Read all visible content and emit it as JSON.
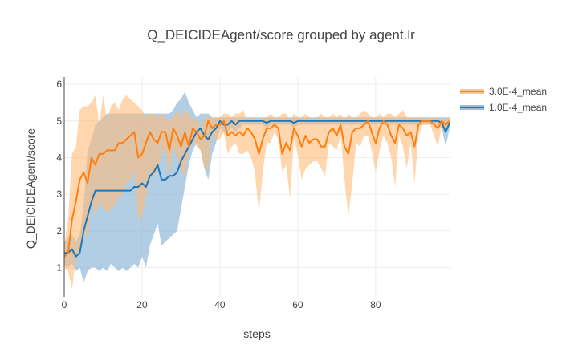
{
  "chart_data": {
    "type": "line",
    "title": "Q_DEICIDEAgent/score grouped by agent.lr",
    "xlabel": "steps",
    "ylabel": "Q_DEICIDEAgent/score",
    "xlim": [
      0,
      99
    ],
    "ylim": [
      0.2,
      6.2
    ],
    "x_ticks": [
      0,
      20,
      40,
      60,
      80
    ],
    "y_ticks": [
      1,
      2,
      3,
      4,
      5,
      6
    ],
    "grid": true,
    "legend_position": "top-right",
    "series": [
      {
        "name": "3.0E-4_mean",
        "color": "#ff7f0e",
        "band_color": "#ffbb78",
        "points": [
          [
            0,
            1.3
          ],
          [
            1,
            1.4
          ],
          [
            2,
            2.3
          ],
          [
            3,
            2.8
          ],
          [
            4,
            3.4
          ],
          [
            5,
            3.6
          ],
          [
            6,
            3.3
          ],
          [
            7,
            4.0
          ],
          [
            8,
            3.8
          ],
          [
            9,
            4.1
          ],
          [
            10,
            4.1
          ],
          [
            11,
            4.2
          ],
          [
            12,
            4.2
          ],
          [
            13,
            4.2
          ],
          [
            14,
            4.4
          ],
          [
            15,
            4.4
          ],
          [
            16,
            4.5
          ],
          [
            17,
            4.6
          ],
          [
            18,
            4.7
          ],
          [
            19,
            4.0
          ],
          [
            20,
            4.1
          ],
          [
            21,
            4.4
          ],
          [
            22,
            4.7
          ],
          [
            23,
            4.5
          ],
          [
            24,
            4.4
          ],
          [
            25,
            4.7
          ],
          [
            26,
            4.7
          ],
          [
            27,
            4.2
          ],
          [
            28,
            4.8
          ],
          [
            29,
            4.6
          ],
          [
            30,
            4.3
          ],
          [
            31,
            4.7
          ],
          [
            32,
            4.3
          ],
          [
            33,
            4.8
          ],
          [
            34,
            4.7
          ],
          [
            35,
            4.5
          ],
          [
            36,
            4.6
          ],
          [
            37,
            5.0
          ],
          [
            38,
            4.8
          ],
          [
            39,
            4.9
          ],
          [
            40,
            4.9
          ],
          [
            41,
            5.0
          ],
          [
            42,
            4.6
          ],
          [
            43,
            4.7
          ],
          [
            44,
            4.6
          ],
          [
            45,
            4.7
          ],
          [
            46,
            4.6
          ],
          [
            47,
            4.8
          ],
          [
            48,
            4.7
          ],
          [
            49,
            4.5
          ],
          [
            50,
            4.1
          ],
          [
            51,
            4.5
          ],
          [
            52,
            4.8
          ],
          [
            53,
            4.8
          ],
          [
            54,
            4.9
          ],
          [
            55,
            4.8
          ],
          [
            56,
            4.1
          ],
          [
            57,
            4.4
          ],
          [
            58,
            4.2
          ],
          [
            59,
            4.8
          ],
          [
            60,
            4.6
          ],
          [
            61,
            4.3
          ],
          [
            62,
            4.6
          ],
          [
            63,
            4.4
          ],
          [
            64,
            4.5
          ],
          [
            65,
            4.5
          ],
          [
            66,
            4.3
          ],
          [
            67,
            4.3
          ],
          [
            68,
            4.7
          ],
          [
            69,
            4.8
          ],
          [
            70,
            4.6
          ],
          [
            71,
            4.9
          ],
          [
            72,
            4.3
          ],
          [
            73,
            4.1
          ],
          [
            74,
            4.7
          ],
          [
            75,
            4.8
          ],
          [
            76,
            4.8
          ],
          [
            77,
            4.9
          ],
          [
            78,
            5.0
          ],
          [
            79,
            4.7
          ],
          [
            80,
            4.4
          ],
          [
            81,
            4.8
          ],
          [
            82,
            5.0
          ],
          [
            83,
            4.9
          ],
          [
            84,
            4.6
          ],
          [
            85,
            4.4
          ],
          [
            86,
            4.9
          ],
          [
            87,
            4.8
          ],
          [
            88,
            4.6
          ],
          [
            89,
            4.7
          ],
          [
            90,
            4.3
          ],
          [
            91,
            4.9
          ],
          [
            92,
            5.0
          ],
          [
            93,
            5.0
          ],
          [
            94,
            5.0
          ],
          [
            95,
            4.9
          ],
          [
            96,
            4.8
          ],
          [
            97,
            5.0
          ],
          [
            98,
            4.9
          ],
          [
            99,
            5.0
          ]
        ],
        "upper": [
          1.6,
          2.3,
          4.1,
          4.3,
          5.3,
          5.4,
          5.4,
          5.5,
          5.7,
          4.9,
          5.7,
          5.0,
          5.4,
          5.5,
          5.3,
          5.6,
          5.7,
          5.6,
          5.5,
          5.4,
          5.3,
          5.1,
          5.2,
          5.2,
          5.1,
          5.2,
          5.1,
          5.0,
          5.1,
          5.3,
          5.1,
          5.3,
          5.2,
          5.0,
          5.1,
          4.8,
          5.1,
          5.1,
          5.1,
          5.1,
          5.1,
          5.2,
          5.2,
          5.1,
          5.2,
          5.2,
          5.3,
          5.0,
          5.1,
          5.1,
          5.0,
          5.1,
          5.1,
          5.2,
          5.1,
          5.1,
          5.2,
          5.2,
          5.0,
          5.2,
          5.1,
          5.1,
          5.2,
          5.1,
          5.0,
          5.1,
          5.2,
          5.1,
          5.1,
          5.2,
          5.1,
          5.2,
          5.0,
          5.2,
          5.1,
          5.1,
          5.2,
          5.3,
          5.2,
          5.1,
          5.1,
          5.2,
          5.1,
          5.2,
          5.2,
          5.1,
          5.2,
          5.3,
          5.1,
          5.1,
          5.1,
          5.1,
          5.1,
          5.0,
          5.1,
          5.1,
          5.1,
          5.0,
          5.1,
          5.1
        ],
        "lower": [
          1.0,
          0.9,
          0.4,
          1.3,
          1.5,
          2.0,
          1.8,
          2.8,
          2.4,
          2.8,
          2.6,
          2.5,
          2.6,
          2.7,
          2.9,
          3.0,
          3.3,
          3.4,
          3.6,
          2.3,
          2.4,
          2.9,
          3.6,
          3.5,
          3.6,
          4.1,
          4.2,
          3.4,
          4.3,
          4.0,
          3.6,
          3.5,
          4.2,
          4.5,
          4.3,
          4.2,
          3.7,
          3.7,
          4.6,
          4.5,
          4.5,
          4.7,
          4.1,
          4.3,
          4.4,
          4.1,
          4.1,
          4.2,
          4.0,
          3.6,
          2.5,
          3.6,
          4.4,
          4.4,
          4.7,
          4.5,
          3.6,
          3.8,
          2.9,
          4.5,
          4.1,
          3.4,
          3.7,
          3.8,
          3.9,
          3.9,
          3.7,
          3.5,
          4.4,
          4.3,
          4.2,
          4.6,
          3.4,
          2.4,
          3.3,
          4.4,
          4.3,
          4.6,
          4.6,
          4.2,
          3.6,
          4.2,
          4.6,
          4.4,
          4.0,
          3.2,
          4.6,
          4.3,
          3.7,
          4.4,
          3.3,
          4.6,
          4.9,
          4.9,
          4.9,
          4.6,
          4.3,
          4.9,
          4.7,
          4.9
        ]
      },
      {
        "name": "1.0E-4_mean",
        "color": "#1f77b4",
        "band_color": "#7fadd4",
        "points": [
          [
            0,
            1.4
          ],
          [
            1,
            1.4
          ],
          [
            2,
            1.5
          ],
          [
            3,
            1.3
          ],
          [
            4,
            1.4
          ],
          [
            5,
            2.0
          ],
          [
            6,
            2.4
          ],
          [
            7,
            2.8
          ],
          [
            8,
            3.1
          ],
          [
            9,
            3.1
          ],
          [
            10,
            3.1
          ],
          [
            11,
            3.1
          ],
          [
            12,
            3.1
          ],
          [
            13,
            3.1
          ],
          [
            14,
            3.1
          ],
          [
            15,
            3.1
          ],
          [
            16,
            3.1
          ],
          [
            17,
            3.1
          ],
          [
            18,
            3.2
          ],
          [
            19,
            3.2
          ],
          [
            20,
            3.3
          ],
          [
            21,
            3.2
          ],
          [
            22,
            3.5
          ],
          [
            23,
            3.6
          ],
          [
            24,
            3.8
          ],
          [
            25,
            3.4
          ],
          [
            26,
            3.4
          ],
          [
            27,
            3.5
          ],
          [
            28,
            3.5
          ],
          [
            29,
            3.6
          ],
          [
            30,
            3.9
          ],
          [
            31,
            4.1
          ],
          [
            32,
            4.3
          ],
          [
            33,
            4.5
          ],
          [
            34,
            4.7
          ],
          [
            35,
            4.8
          ],
          [
            36,
            4.6
          ],
          [
            37,
            4.5
          ],
          [
            38,
            4.7
          ],
          [
            39,
            4.8
          ],
          [
            40,
            5.0
          ],
          [
            41,
            4.9
          ],
          [
            42,
            4.9
          ],
          [
            43,
            5.0
          ],
          [
            44,
            4.9
          ],
          [
            45,
            5.0
          ],
          [
            46,
            5.0
          ],
          [
            47,
            5.0
          ],
          [
            48,
            5.0
          ],
          [
            49,
            5.0
          ],
          [
            50,
            5.0
          ],
          [
            51,
            5.0
          ],
          [
            52,
            4.95
          ],
          [
            53,
            5.0
          ],
          [
            54,
            5.0
          ],
          [
            55,
            5.0
          ],
          [
            56,
            5.0
          ],
          [
            57,
            5.0
          ],
          [
            58,
            5.0
          ],
          [
            59,
            4.95
          ],
          [
            60,
            5.0
          ],
          [
            61,
            5.0
          ],
          [
            62,
            5.0
          ],
          [
            63,
            5.0
          ],
          [
            64,
            5.0
          ],
          [
            65,
            5.0
          ],
          [
            66,
            5.0
          ],
          [
            67,
            5.0
          ],
          [
            68,
            5.0
          ],
          [
            69,
            5.0
          ],
          [
            70,
            5.0
          ],
          [
            71,
            5.0
          ],
          [
            72,
            5.0
          ],
          [
            73,
            5.0
          ],
          [
            74,
            5.0
          ],
          [
            75,
            5.0
          ],
          [
            76,
            5.0
          ],
          [
            77,
            5.0
          ],
          [
            78,
            5.0
          ],
          [
            79,
            5.0
          ],
          [
            80,
            5.0
          ],
          [
            81,
            5.0
          ],
          [
            82,
            5.0
          ],
          [
            83,
            5.0
          ],
          [
            84,
            5.0
          ],
          [
            85,
            5.0
          ],
          [
            86,
            5.0
          ],
          [
            87,
            5.0
          ],
          [
            88,
            5.0
          ],
          [
            89,
            5.0
          ],
          [
            90,
            5.0
          ],
          [
            91,
            5.0
          ],
          [
            92,
            5.0
          ],
          [
            93,
            5.0
          ],
          [
            94,
            5.0
          ],
          [
            95,
            5.0
          ],
          [
            96,
            5.0
          ],
          [
            97,
            4.95
          ],
          [
            98,
            4.7
          ],
          [
            99,
            4.95
          ]
        ],
        "upper": [
          1.7,
          1.8,
          1.9,
          1.7,
          1.9,
          2.7,
          4.2,
          4.5,
          4.9,
          5.0,
          5.1,
          5.2,
          5.2,
          5.2,
          5.2,
          5.2,
          5.2,
          5.2,
          5.2,
          5.2,
          5.2,
          5.2,
          5.2,
          5.2,
          5.2,
          5.2,
          5.2,
          5.2,
          5.3,
          5.5,
          5.6,
          5.8,
          5.5,
          5.3,
          5.1,
          5.2,
          5.2,
          5.2,
          5.1,
          5.1,
          5.1,
          5.1,
          5.1,
          5.1,
          5.1,
          5.1,
          5.1,
          5.1,
          5.1,
          5.1,
          5.1,
          5.1,
          5.1,
          5.1,
          5.1,
          5.1,
          5.1,
          5.1,
          5.1,
          5.1,
          5.1,
          5.1,
          5.1,
          5.1,
          5.1,
          5.1,
          5.1,
          5.1,
          5.1,
          5.1,
          5.1,
          5.1,
          5.1,
          5.1,
          5.1,
          5.1,
          5.1,
          5.1,
          5.1,
          5.1,
          5.1,
          5.1,
          5.1,
          5.1,
          5.1,
          5.1,
          5.1,
          5.1,
          5.1,
          5.1,
          5.1,
          5.1,
          5.1,
          5.1,
          5.1,
          5.1,
          5.1,
          5.1,
          5.1,
          5.1
        ],
        "lower": [
          1.1,
          1.0,
          1.1,
          0.9,
          1.0,
          0.6,
          0.9,
          1.0,
          1.0,
          0.9,
          1.0,
          0.9,
          1.1,
          1.0,
          0.9,
          1.0,
          0.9,
          1.0,
          1.1,
          1.0,
          1.3,
          1.0,
          1.6,
          1.9,
          2.2,
          1.6,
          1.7,
          1.8,
          1.9,
          2.0,
          2.6,
          3.2,
          3.8,
          4.2,
          4.4,
          4.2,
          3.7,
          3.4,
          4.1,
          4.4,
          4.8,
          4.7,
          4.7,
          4.8,
          4.7,
          4.8,
          4.9,
          4.9,
          4.9,
          4.9,
          4.9,
          4.9,
          4.8,
          4.9,
          4.9,
          4.9,
          4.9,
          4.9,
          4.9,
          4.8,
          4.9,
          4.9,
          4.9,
          4.9,
          4.9,
          4.9,
          4.9,
          4.9,
          4.9,
          4.9,
          4.9,
          4.9,
          4.9,
          4.9,
          4.9,
          4.9,
          4.9,
          4.9,
          4.9,
          4.9,
          4.9,
          4.9,
          4.9,
          4.9,
          4.9,
          4.9,
          4.9,
          4.9,
          4.9,
          4.9,
          4.9,
          4.9,
          4.9,
          4.9,
          4.9,
          4.9,
          4.9,
          4.8,
          4.3,
          4.8
        ]
      }
    ]
  }
}
